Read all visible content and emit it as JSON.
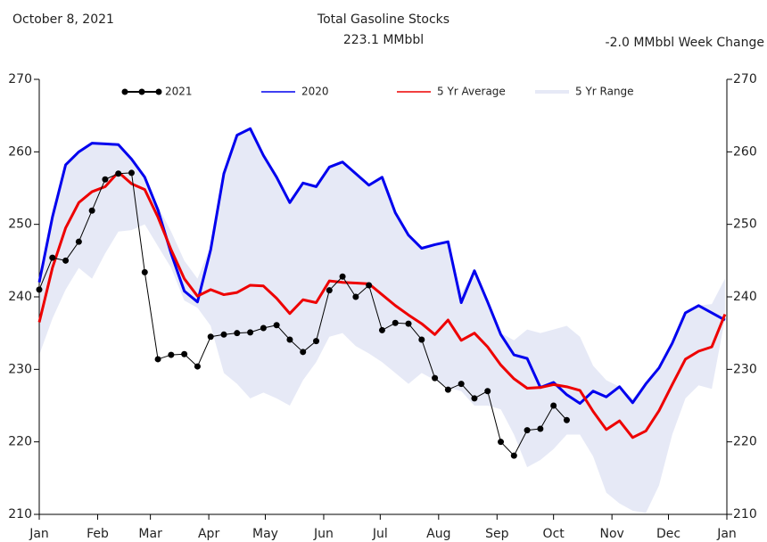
{
  "chart_data": {
    "type": "line",
    "date_label": "October 8, 2021",
    "title": "Total Gasoline Stocks",
    "subtitle": "223.1 MMbbl",
    "change_label": "-2.0 MMbbl Week Change",
    "x": [
      0,
      7,
      14,
      21,
      28,
      35,
      42,
      49,
      56,
      63,
      70,
      77,
      84,
      91,
      98,
      105,
      112,
      119,
      126,
      133,
      140,
      147,
      154,
      161,
      168,
      175,
      182,
      189,
      196,
      203,
      210,
      217,
      224,
      231,
      238,
      245,
      252,
      259,
      266,
      273,
      280,
      287,
      294,
      301,
      308,
      315,
      322,
      329,
      336,
      343,
      350,
      357,
      364
    ],
    "xlim": [
      0,
      365
    ],
    "xticks": [
      {
        "value": 0,
        "label": "Jan"
      },
      {
        "value": 31,
        "label": "Feb"
      },
      {
        "value": 59,
        "label": "Mar"
      },
      {
        "value": 90,
        "label": "Apr"
      },
      {
        "value": 120,
        "label": "May"
      },
      {
        "value": 151,
        "label": "Jun"
      },
      {
        "value": 181,
        "label": "Jul"
      },
      {
        "value": 212,
        "label": "Aug"
      },
      {
        "value": 243,
        "label": "Sep"
      },
      {
        "value": 273,
        "label": "Oct"
      },
      {
        "value": 304,
        "label": "Nov"
      },
      {
        "value": 334,
        "label": "Dec"
      },
      {
        "value": 365,
        "label": "Jan"
      }
    ],
    "ylim": [
      210,
      270
    ],
    "yticks": [
      210,
      220,
      230,
      240,
      250,
      260,
      270
    ],
    "series": [
      {
        "name": "5 Yr Range",
        "kind": "range",
        "color": "#e6e9f6",
        "values": [
          240,
          252,
          258,
          260,
          261,
          261,
          261,
          259,
          256.5,
          252.5,
          249,
          245,
          242.5,
          247,
          257,
          262.3,
          263.2,
          259.5,
          256.5,
          253,
          255.7,
          255.2,
          257.9,
          258.6,
          257,
          255.4,
          256.5,
          251.6,
          248.5,
          246.7,
          247.2,
          247.6,
          240.5,
          243.6,
          239.3,
          235,
          234,
          235.5,
          235,
          235.5,
          236,
          234.5,
          230.5,
          228.5,
          227.6,
          226,
          228,
          230.2,
          233.6,
          237.8,
          238.8,
          239,
          242.5
        ],
        "lower": [
          232,
          237,
          241,
          244,
          242.5,
          246,
          249,
          249.2,
          250,
          247,
          244,
          239.5,
          238.5,
          236,
          229.5,
          228,
          226,
          226.8,
          226,
          225,
          228.5,
          231,
          234.5,
          235,
          233.2,
          232.2,
          231,
          229.5,
          228,
          229.5,
          228.5,
          227.5,
          227,
          225,
          225,
          224.5,
          221,
          216.5,
          217.5,
          219,
          221,
          221,
          218,
          213,
          211.5,
          210.5,
          210.2,
          214,
          221,
          226,
          227.8,
          227.3,
          237
        ]
      },
      {
        "name": "2020",
        "kind": "line",
        "color": "#0000ee",
        "values": [
          242,
          251,
          258.2,
          260,
          261.2,
          261.1,
          261,
          259,
          256.5,
          252,
          246,
          240.8,
          239.3,
          246.5,
          257,
          262.3,
          263.2,
          259.5,
          256.5,
          253,
          255.7,
          255.2,
          257.9,
          258.6,
          257,
          255.4,
          256.5,
          251.6,
          248.5,
          246.7,
          247.2,
          247.6,
          239.2,
          243.6,
          239.3,
          234.8,
          232,
          231.5,
          227.5,
          228.2,
          226.5,
          225.3,
          227,
          226.2,
          227.6,
          225.4,
          228,
          230.2,
          233.6,
          237.8,
          238.8,
          237.8,
          236.8
        ]
      },
      {
        "name": "5 Yr Average",
        "kind": "line",
        "color": "#ee0000",
        "values": [
          236.5,
          244,
          249.5,
          253,
          254.5,
          255.2,
          257.2,
          255.6,
          254.8,
          251,
          246.5,
          242.5,
          240.1,
          241,
          240.3,
          240.6,
          241.6,
          241.5,
          239.8,
          237.7,
          239.6,
          239.2,
          242.2,
          242,
          241.9,
          241.8,
          240.3,
          238.8,
          237.5,
          236.3,
          234.8,
          236.8,
          234,
          235,
          233.1,
          230.6,
          228.7,
          227.4,
          227.5,
          227.9,
          227.6,
          227.1,
          224.2,
          221.7,
          222.9,
          220.6,
          221.5,
          224.3,
          227.9,
          231.4,
          232.5,
          233.1,
          237.6
        ]
      },
      {
        "name": "2021",
        "kind": "dots",
        "color": "#000000",
        "values": [
          241,
          245.4,
          245,
          247.6,
          251.9,
          256.2,
          257,
          257.1,
          243.4,
          231.4,
          232,
          232.1,
          230.4,
          234.5,
          234.8,
          235,
          235.1,
          235.7,
          236.1,
          234.1,
          232.4,
          233.9,
          240.9,
          242.8,
          240,
          241.6,
          235.4,
          236.4,
          236.3,
          234.1,
          228.8,
          227.2,
          228,
          226,
          227,
          220,
          218.1,
          221.6,
          221.8,
          225,
          223,
          null,
          null,
          null,
          null,
          null,
          null,
          null,
          null,
          null,
          null,
          null,
          null
        ]
      }
    ]
  }
}
